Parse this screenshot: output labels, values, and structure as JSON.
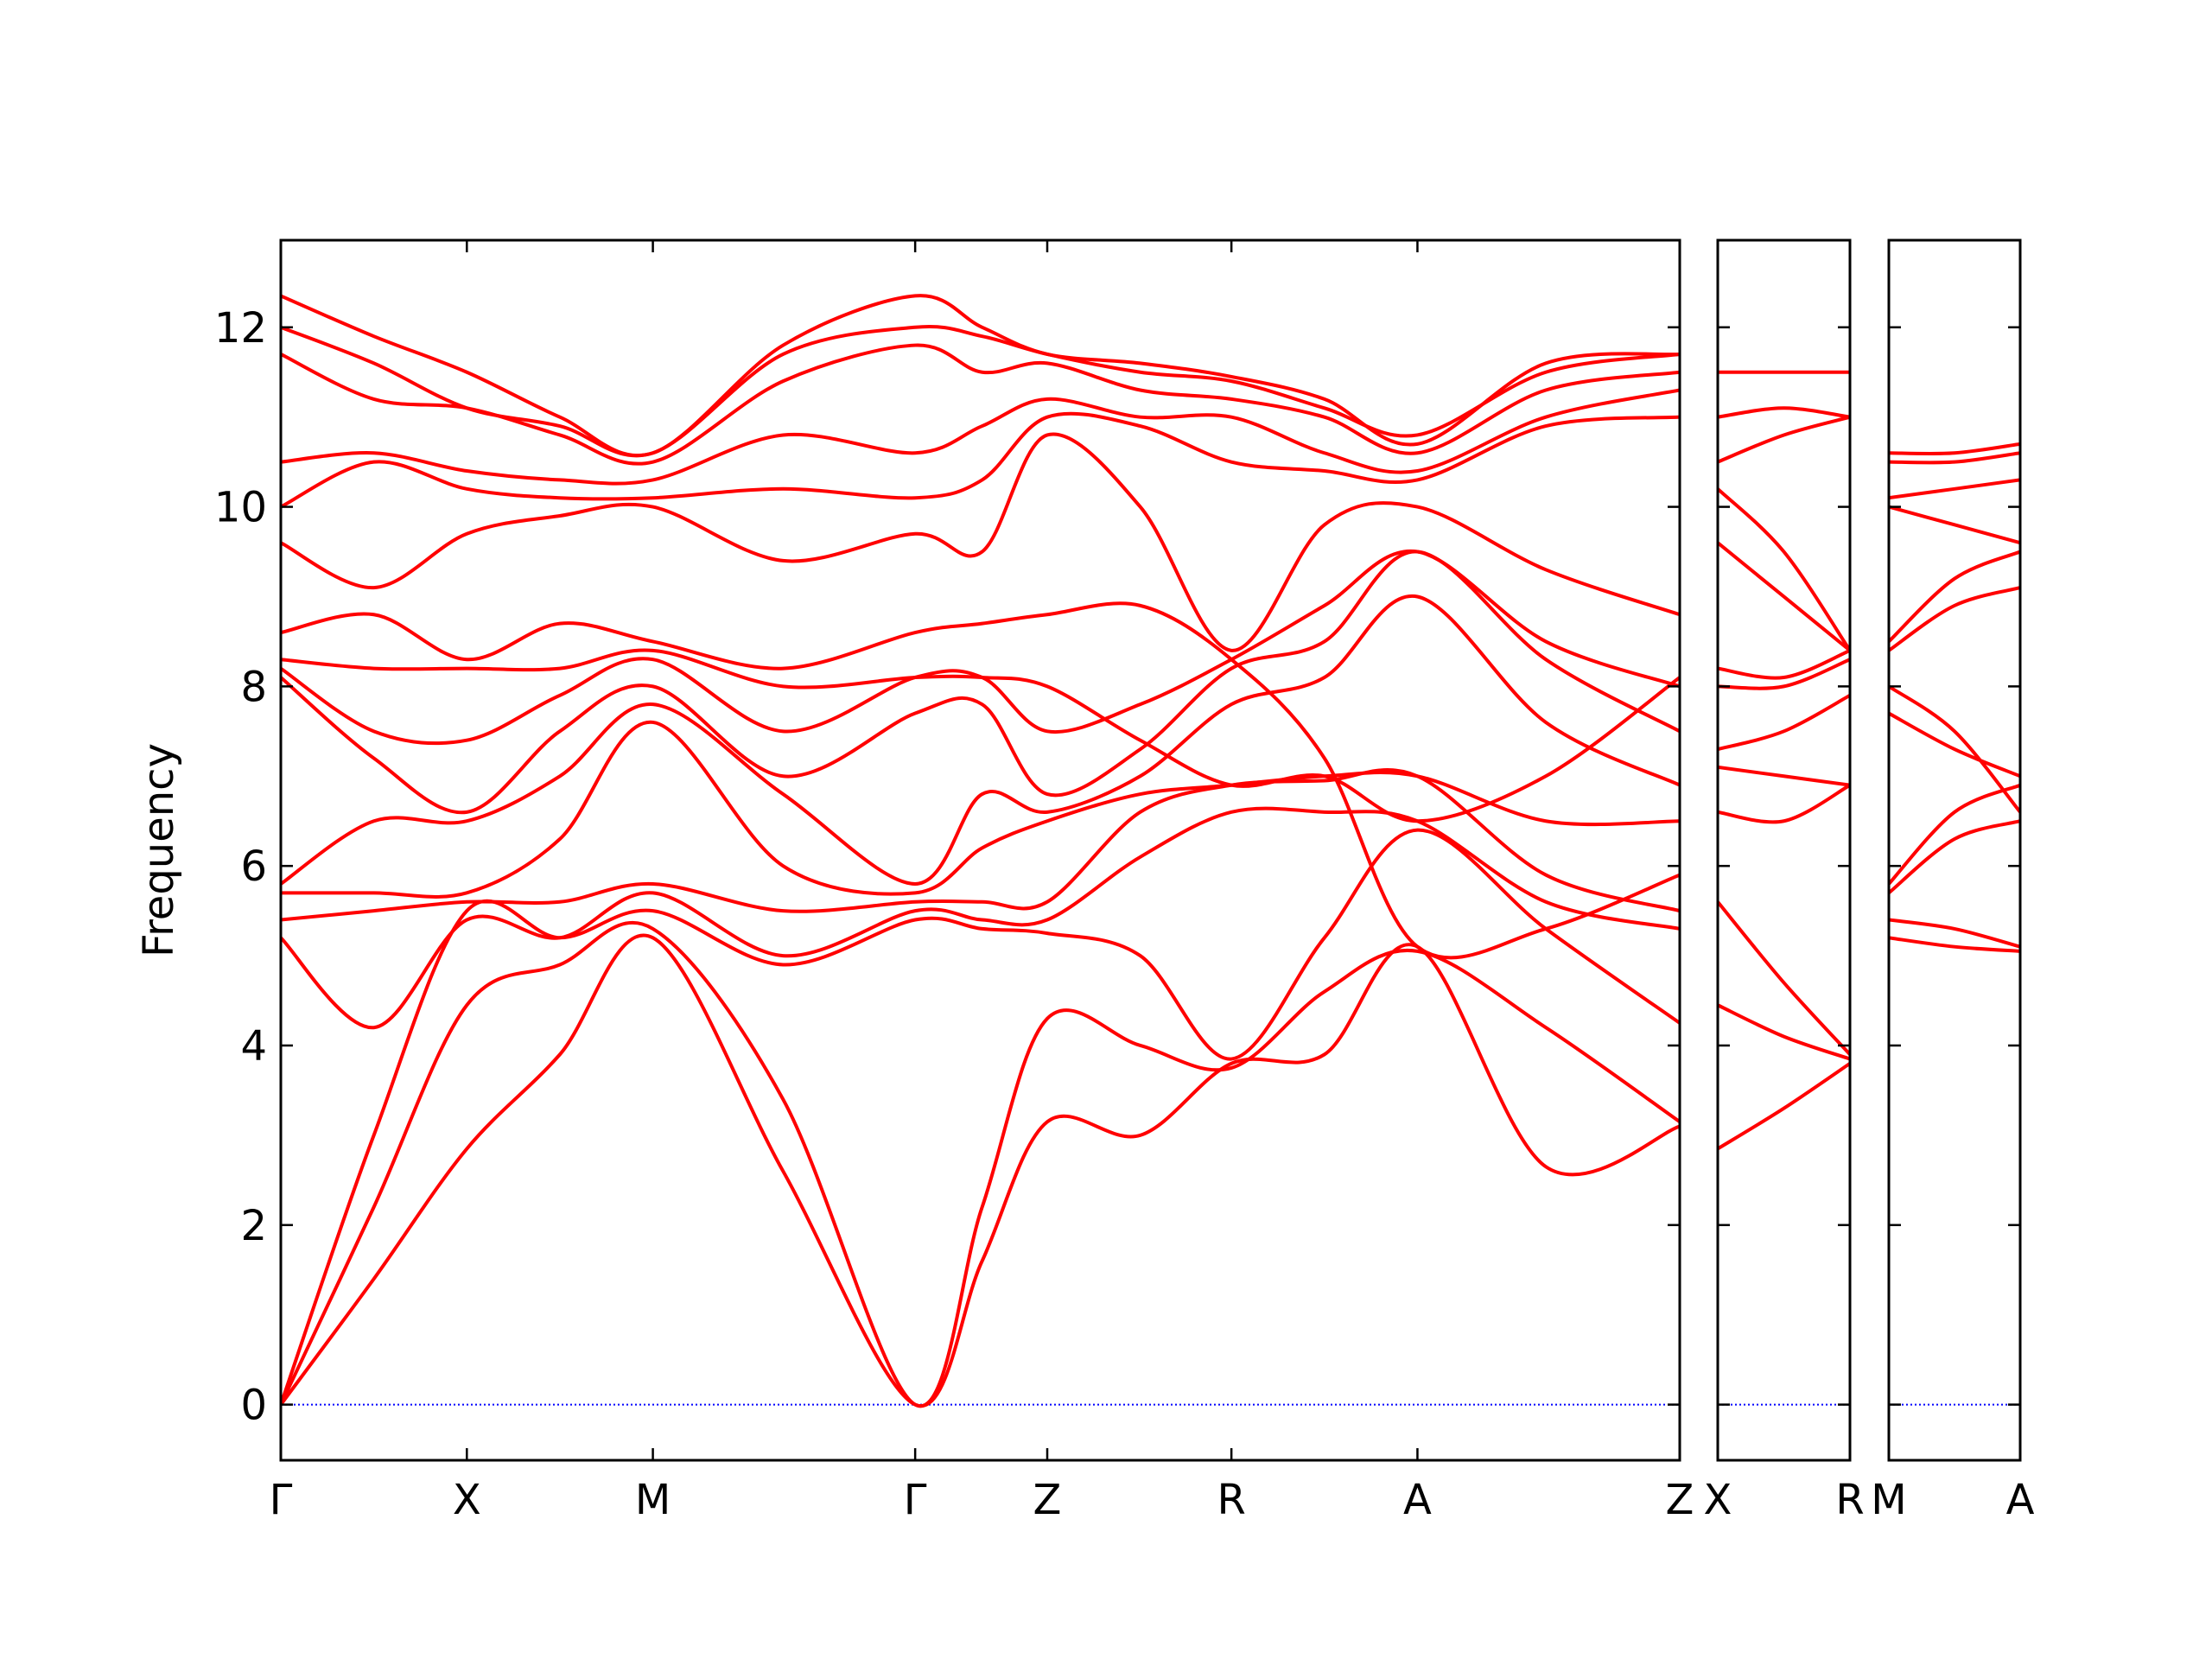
{
  "chart_data": [
    {
      "type": "line",
      "ylabel": "Frequency",
      "color": "#ff0000",
      "zero_line": true,
      "zero_line_color": "#0000ff",
      "ytick_labels": true,
      "x": [
        0,
        0.5,
        1,
        1.5,
        2,
        2.7,
        3.41,
        3.77,
        4.12,
        4.62,
        5.11,
        5.61,
        6.11,
        6.8,
        7.52
      ],
      "xlim": [
        0,
        7.52
      ],
      "ylim": [
        -0.62,
        12.97
      ],
      "xticks": [
        {
          "value": 0,
          "label": "Γ"
        },
        {
          "value": 1,
          "label": "X"
        },
        {
          "value": 2,
          "label": "M"
        },
        {
          "value": 3.41,
          "label": "Γ"
        },
        {
          "value": 4.12,
          "label": "Z"
        },
        {
          "value": 5.11,
          "label": "R"
        },
        {
          "value": 6.11,
          "label": "A"
        },
        {
          "value": 7.52,
          "label": "Z"
        }
      ],
      "yticks": [
        0,
        2,
        4,
        6,
        8,
        10,
        12
      ],
      "series": [
        {
          "values": [
            0,
            1.4,
            2.85,
            3.9,
            5.2,
            2.6,
            0,
            1.6,
            3.15,
            3.0,
            3.8,
            3.9,
            5.1,
            2.65,
            3.1
          ]
        },
        {
          "values": [
            0,
            2.2,
            4.45,
            4.9,
            5.3,
            3.4,
            0,
            2.2,
            4.3,
            4.0,
            3.75,
            4.6,
            5.05,
            4.2,
            3.15
          ]
        },
        {
          "values": [
            0,
            3.0,
            5.5,
            5.2,
            5.5,
            4.9,
            5.4,
            5.3,
            5.25,
            5.0,
            3.85,
            5.2,
            6.4,
            5.3,
            4.25
          ]
        },
        {
          "values": [
            5.2,
            4.2,
            5.4,
            5.2,
            5.7,
            5.0,
            5.5,
            5.4,
            5.4,
            6.1,
            6.6,
            6.6,
            6.5,
            5.6,
            5.3
          ]
        },
        {
          "values": [
            5.4,
            5.5,
            5.6,
            5.6,
            5.8,
            5.5,
            5.6,
            5.6,
            5.6,
            6.6,
            6.9,
            6.95,
            7.0,
            5.9,
            5.5
          ]
        },
        {
          "values": [
            5.7,
            5.7,
            5.7,
            6.3,
            7.6,
            6.0,
            5.7,
            6.2,
            6.5,
            6.8,
            6.9,
            7.0,
            7.0,
            6.5,
            6.5
          ]
        },
        {
          "values": [
            5.8,
            6.5,
            6.5,
            7.0,
            7.8,
            6.8,
            5.8,
            6.8,
            6.6,
            7.0,
            7.8,
            8.1,
            9.0,
            7.6,
            6.9
          ]
        },
        {
          "values": [
            8.1,
            7.2,
            6.6,
            7.5,
            8.0,
            7.0,
            7.7,
            7.8,
            6.8,
            7.3,
            8.2,
            8.5,
            9.5,
            8.3,
            7.5
          ]
        },
        {
          "values": [
            8.2,
            7.5,
            7.4,
            7.9,
            8.3,
            7.5,
            8.1,
            8.1,
            7.5,
            7.8,
            8.3,
            8.9,
            9.5,
            8.5,
            8.0
          ]
        },
        {
          "values": [
            8.3,
            8.2,
            8.2,
            8.2,
            8.4,
            8.0,
            8.1,
            8.1,
            8.0,
            7.4,
            6.9,
            7.0,
            6.5,
            7.0,
            8.1
          ]
        },
        {
          "values": [
            8.6,
            8.8,
            8.3,
            8.7,
            8.5,
            8.2,
            8.6,
            8.7,
            8.8,
            8.9,
            8.3,
            7.2,
            5.1,
            5.3,
            5.9
          ]
        },
        {
          "values": [
            9.6,
            9.1,
            9.7,
            9.9,
            10.0,
            9.4,
            9.7,
            9.5,
            10.8,
            10.0,
            8.4,
            9.8,
            10.0,
            9.3,
            8.8
          ]
        },
        {
          "values": [
            10.0,
            10.5,
            10.2,
            10.1,
            10.1,
            10.2,
            10.1,
            10.3,
            11.0,
            10.9,
            10.5,
            10.4,
            10.3,
            10.9,
            11.0
          ]
        },
        {
          "values": [
            10.5,
            10.6,
            10.4,
            10.3,
            10.3,
            10.8,
            10.6,
            10.9,
            11.2,
            11.0,
            11.0,
            10.6,
            10.4,
            11.0,
            11.3
          ]
        },
        {
          "values": [
            11.7,
            11.2,
            11.1,
            10.8,
            10.5,
            11.4,
            11.8,
            11.5,
            11.6,
            11.3,
            11.2,
            11.0,
            10.6,
            11.3,
            11.5
          ]
        },
        {
          "values": [
            12.0,
            11.6,
            11.1,
            10.9,
            10.6,
            11.7,
            12.0,
            11.9,
            11.7,
            11.5,
            11.4,
            11.1,
            10.8,
            11.5,
            11.7
          ]
        },
        {
          "values": [
            12.35,
            11.9,
            11.5,
            11.0,
            10.6,
            11.8,
            12.35,
            12.0,
            11.7,
            11.6,
            11.45,
            11.2,
            10.7,
            11.6,
            11.7
          ]
        }
      ]
    },
    {
      "type": "line",
      "color": "#ff0000",
      "zero_line": true,
      "zero_line_color": "#0000ff",
      "ytick_labels": false,
      "x": [
        0,
        0.355,
        0.71
      ],
      "xlim": [
        0,
        0.71
      ],
      "ylim": [
        -0.62,
        12.97
      ],
      "xticks": [
        {
          "value": 0,
          "label": "X"
        },
        {
          "value": 0.71,
          "label": "R"
        }
      ],
      "yticks": [
        0,
        2,
        4,
        6,
        8,
        10,
        12
      ],
      "series": [
        {
          "values": [
            2.85,
            3.3,
            3.8
          ]
        },
        {
          "values": [
            4.45,
            4.1,
            3.85
          ]
        },
        {
          "values": [
            5.6,
            4.7,
            3.9
          ]
        },
        {
          "values": [
            6.6,
            6.5,
            6.9
          ]
        },
        {
          "values": [
            7.1,
            7.0,
            6.9
          ]
        },
        {
          "values": [
            7.3,
            7.5,
            7.9
          ]
        },
        {
          "values": [
            8.0,
            8.0,
            8.3
          ]
        },
        {
          "values": [
            8.2,
            8.1,
            8.4
          ]
        },
        {
          "values": [
            9.6,
            9.0,
            8.4
          ]
        },
        {
          "values": [
            10.2,
            9.5,
            8.4
          ]
        },
        {
          "values": [
            10.5,
            10.8,
            11.0
          ]
        },
        {
          "values": [
            11.0,
            11.1,
            11.0
          ]
        },
        {
          "values": [
            11.5,
            11.5,
            11.5
          ]
        }
      ]
    },
    {
      "type": "line",
      "color": "#ff0000",
      "zero_line": true,
      "zero_line_color": "#0000ff",
      "ytick_labels": false,
      "x": [
        0,
        0.355,
        0.71
      ],
      "xlim": [
        0,
        0.71
      ],
      "ylim": [
        -0.62,
        12.97
      ],
      "xticks": [
        {
          "value": 0,
          "label": "M"
        },
        {
          "value": 0.71,
          "label": "A"
        }
      ],
      "yticks": [
        0,
        2,
        4,
        6,
        8,
        10,
        12
      ],
      "series": [
        {
          "values": [
            5.2,
            5.1,
            5.05
          ]
        },
        {
          "values": [
            5.4,
            5.3,
            5.1
          ]
        },
        {
          "values": [
            5.7,
            6.3,
            6.5
          ]
        },
        {
          "values": [
            5.8,
            6.6,
            6.9
          ]
        },
        {
          "values": [
            7.7,
            7.3,
            7.0
          ]
        },
        {
          "values": [
            8.0,
            7.5,
            6.6
          ]
        },
        {
          "values": [
            8.4,
            8.9,
            9.1
          ]
        },
        {
          "values": [
            8.5,
            9.2,
            9.5
          ]
        },
        {
          "values": [
            10.0,
            9.8,
            9.6
          ]
        },
        {
          "values": [
            10.1,
            10.2,
            10.3
          ]
        },
        {
          "values": [
            10.5,
            10.5,
            10.6
          ]
        },
        {
          "values": [
            10.6,
            10.6,
            10.7
          ]
        }
      ]
    }
  ]
}
